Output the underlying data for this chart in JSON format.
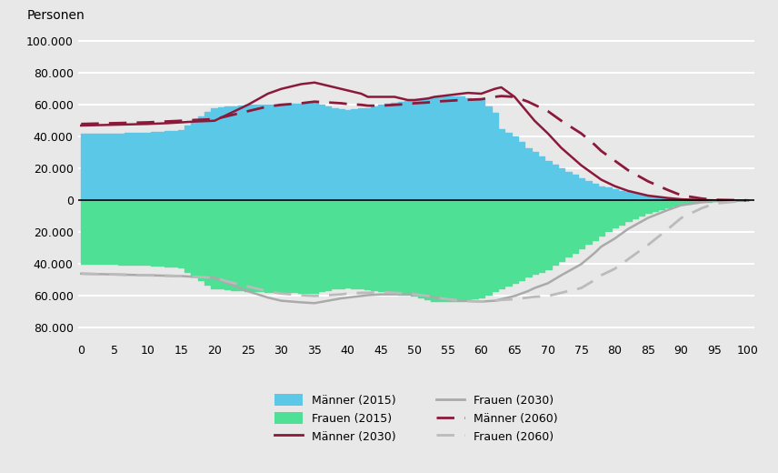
{
  "ylabel": "Personen",
  "xlabel_ticks": [
    0,
    5,
    10,
    15,
    20,
    25,
    30,
    35,
    40,
    45,
    50,
    55,
    60,
    65,
    70,
    75,
    80,
    85,
    90,
    95,
    100
  ],
  "yticks_pos": [
    100000,
    80000,
    60000,
    40000,
    20000,
    0,
    -20000,
    -40000,
    -60000,
    -80000
  ],
  "ytick_labels": [
    "100.000",
    "80.000",
    "60.000",
    "40.000",
    "20.000",
    "0",
    "20.000",
    "40.000",
    "60.000",
    "80.000"
  ],
  "ylim": [
    -88000,
    108000
  ],
  "xlim": [
    -0.5,
    101
  ],
  "color_men_2015": "#5BC8E8",
  "color_women_2015": "#4EE094",
  "color_men_2030": "#8B1A3A",
  "color_women_2030": "#AAAAAA",
  "color_men_2060": "#8B1A3A",
  "color_women_2060": "#BBBBBB",
  "background_color": "#E8E8E8",
  "grid_color": "#FFFFFF",
  "legend_labels": [
    "Männer (2015)",
    "Frauen (2015)",
    "Männer (2030)",
    "Frauen (2030)",
    "Männer (2060)",
    "Frauen (2060)"
  ]
}
